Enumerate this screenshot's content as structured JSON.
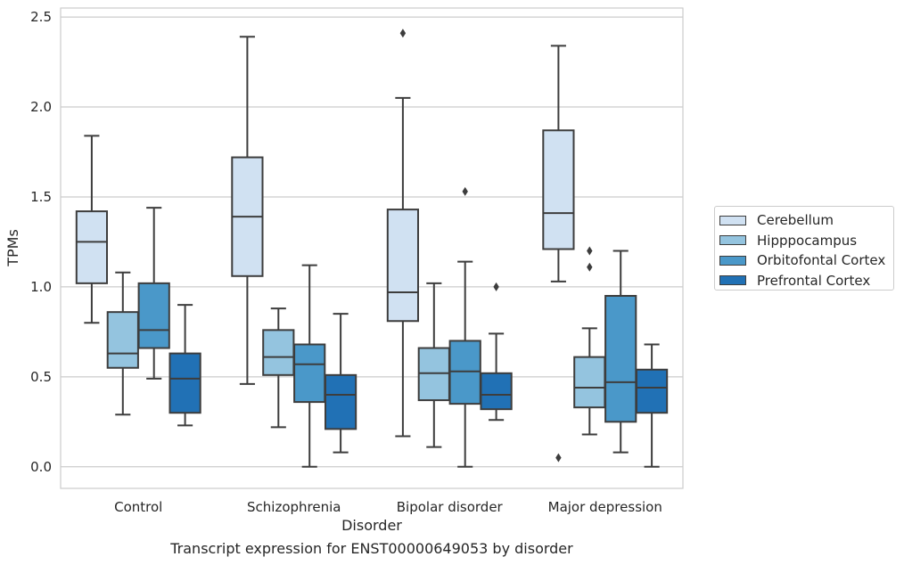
{
  "chart_data": {
    "type": "box",
    "xlabel": "Disorder",
    "ylabel": "TPMs",
    "ylim": [
      -0.12,
      2.55
    ],
    "yticks": [
      0.0,
      0.5,
      1.0,
      1.5,
      2.0,
      2.5
    ],
    "ytick_labels": [
      "0.0",
      "0.5",
      "1.0",
      "1.5",
      "2.0",
      "2.5"
    ],
    "grid": "horizontal",
    "legend_position": "right",
    "categories": [
      "Control",
      "Schizophrenia",
      "Bipolar disorder",
      "Major depression"
    ],
    "series": [
      {
        "name": "Cerebellum",
        "color": "#d0e1f2",
        "boxes": [
          {
            "whislo": 0.8,
            "q1": 1.02,
            "med": 1.25,
            "q3": 1.42,
            "whishi": 1.84,
            "fliers": []
          },
          {
            "whislo": 0.46,
            "q1": 1.06,
            "med": 1.39,
            "q3": 1.72,
            "whishi": 2.39,
            "fliers": []
          },
          {
            "whislo": 0.17,
            "q1": 0.81,
            "med": 0.97,
            "q3": 1.43,
            "whishi": 2.05,
            "fliers": [
              2.41
            ]
          },
          {
            "whislo": 1.03,
            "q1": 1.21,
            "med": 1.41,
            "q3": 1.87,
            "whishi": 2.34,
            "fliers": [
              0.05
            ]
          }
        ]
      },
      {
        "name": "Hipppocampus",
        "color": "#94c4df",
        "boxes": [
          {
            "whislo": 0.29,
            "q1": 0.55,
            "med": 0.63,
            "q3": 0.86,
            "whishi": 1.08,
            "fliers": []
          },
          {
            "whislo": 0.22,
            "q1": 0.51,
            "med": 0.61,
            "q3": 0.76,
            "whishi": 0.88,
            "fliers": []
          },
          {
            "whislo": 0.11,
            "q1": 0.37,
            "med": 0.52,
            "q3": 0.66,
            "whishi": 1.02,
            "fliers": []
          },
          {
            "whislo": 0.18,
            "q1": 0.33,
            "med": 0.44,
            "q3": 0.61,
            "whishi": 0.77,
            "fliers": [
              1.11,
              1.2
            ]
          }
        ]
      },
      {
        "name": "Orbitofontal Cortex",
        "color": "#4a98c9",
        "boxes": [
          {
            "whislo": 0.49,
            "q1": 0.66,
            "med": 0.76,
            "q3": 1.02,
            "whishi": 1.44,
            "fliers": []
          },
          {
            "whislo": 0.0,
            "q1": 0.36,
            "med": 0.57,
            "q3": 0.68,
            "whishi": 1.12,
            "fliers": []
          },
          {
            "whislo": 0.0,
            "q1": 0.35,
            "med": 0.53,
            "q3": 0.7,
            "whishi": 1.14,
            "fliers": [
              1.53
            ]
          },
          {
            "whislo": 0.08,
            "q1": 0.25,
            "med": 0.47,
            "q3": 0.95,
            "whishi": 1.2,
            "fliers": []
          }
        ]
      },
      {
        "name": "Prefrontal Cortex",
        "color": "#2171b5",
        "boxes": [
          {
            "whislo": 0.23,
            "q1": 0.3,
            "med": 0.49,
            "q3": 0.63,
            "whishi": 0.9,
            "fliers": []
          },
          {
            "whislo": 0.08,
            "q1": 0.21,
            "med": 0.4,
            "q3": 0.51,
            "whishi": 0.85,
            "fliers": []
          },
          {
            "whislo": 0.26,
            "q1": 0.32,
            "med": 0.4,
            "q3": 0.52,
            "whishi": 0.74,
            "fliers": [
              1.0
            ]
          },
          {
            "whislo": 0.0,
            "q1": 0.3,
            "med": 0.44,
            "q3": 0.54,
            "whishi": 0.68,
            "fliers": []
          }
        ]
      }
    ]
  },
  "caption": "Transcript expression for ENST00000649053 by disorder"
}
